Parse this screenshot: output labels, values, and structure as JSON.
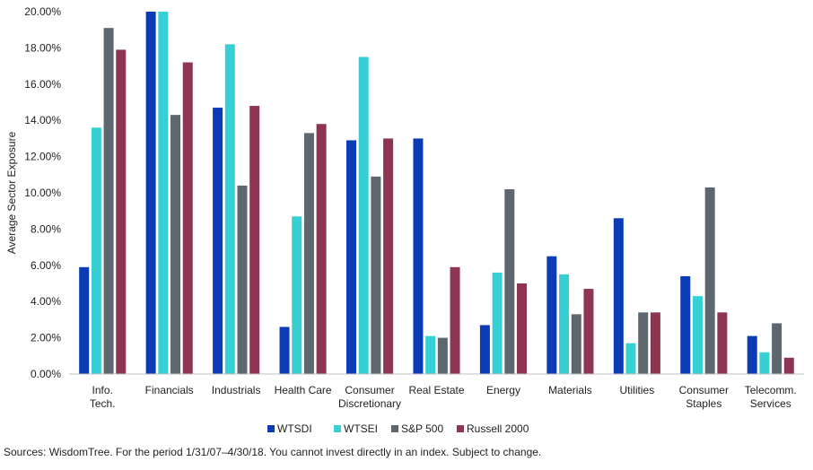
{
  "chart_data": {
    "type": "bar",
    "ylabel": "Average Sector Exposure",
    "xlabel": "",
    "ylim": [
      0,
      20
    ],
    "y_ticks": [
      "0.00%",
      "2.00%",
      "4.00%",
      "6.00%",
      "8.00%",
      "10.00%",
      "12.00%",
      "14.00%",
      "16.00%",
      "18.00%",
      "20.00%"
    ],
    "categories": [
      [
        "Info.",
        "Tech."
      ],
      [
        "Financials"
      ],
      [
        "Industrials"
      ],
      [
        "Health Care"
      ],
      [
        "Consumer",
        "Discretionary"
      ],
      [
        "Real Estate"
      ],
      [
        "Energy"
      ],
      [
        "Materials"
      ],
      [
        "Utilities"
      ],
      [
        "Consumer",
        "Staples"
      ],
      [
        "Telecomm.",
        "Services"
      ]
    ],
    "series": [
      {
        "name": "WTSDI",
        "color": "#0b3bb5",
        "values": [
          5.9,
          20.0,
          14.7,
          2.6,
          12.9,
          13.0,
          2.7,
          6.5,
          8.6,
          5.4,
          2.1
        ]
      },
      {
        "name": "WTSEI",
        "color": "#35cfd4",
        "values": [
          13.6,
          20.0,
          18.2,
          8.7,
          17.5,
          2.1,
          5.6,
          5.5,
          1.7,
          4.3,
          1.2
        ]
      },
      {
        "name": "S&P 500",
        "color": "#5e6670",
        "values": [
          19.1,
          14.3,
          10.4,
          13.3,
          10.9,
          2.0,
          10.2,
          3.3,
          3.4,
          10.3,
          2.8
        ]
      },
      {
        "name": "Russell 2000",
        "color": "#8e3553",
        "values": [
          17.9,
          17.2,
          14.8,
          13.8,
          13.0,
          5.9,
          5.0,
          4.7,
          3.4,
          3.4,
          0.9
        ]
      }
    ],
    "legend_position": "bottom-center",
    "grid": false
  },
  "footer": {
    "source": "Sources: WisdomTree. For the period 1/31/07–4/30/18. You cannot invest directly in an index. Subject to change."
  }
}
